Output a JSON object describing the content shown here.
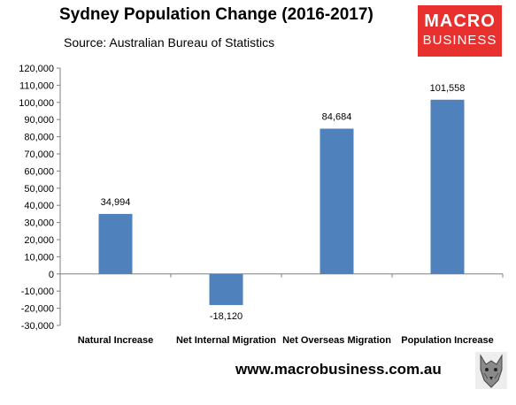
{
  "header": {
    "title": "Sydney Population Change (2016-2017)",
    "subtitle": "Source: Australian Bureau of Statistics"
  },
  "logo": {
    "line1": "MACRO",
    "line2": "BUSINESS",
    "color": "#e8302f"
  },
  "footer": {
    "url": "www.macrobusiness.com.au"
  },
  "colors": {
    "bar": "#4f81bd",
    "axis": "#7f7f7f"
  },
  "chart_data": {
    "type": "bar",
    "title": "Sydney Population Change (2016-2017)",
    "categories": [
      "Natural Increase",
      "Net Internal Migration",
      "Net Overseas Migration",
      "Population Increase"
    ],
    "values": [
      34994,
      -18120,
      84684,
      101558
    ],
    "data_labels": [
      "34,994",
      "-18,120",
      "84,684",
      "101,558"
    ],
    "ylim": [
      -30000,
      120000
    ],
    "yticks": [
      -30000,
      -20000,
      -10000,
      0,
      10000,
      20000,
      30000,
      40000,
      50000,
      60000,
      70000,
      80000,
      90000,
      100000,
      110000,
      120000
    ],
    "ytick_labels": [
      "-30,000",
      "-20,000",
      "-10,000",
      "0",
      "10,000",
      "20,000",
      "30,000",
      "40,000",
      "50,000",
      "60,000",
      "70,000",
      "80,000",
      "90,000",
      "100,000",
      "110,000",
      "120,000"
    ],
    "xlabel": "",
    "ylabel": "",
    "grid": false,
    "legend": "none"
  }
}
